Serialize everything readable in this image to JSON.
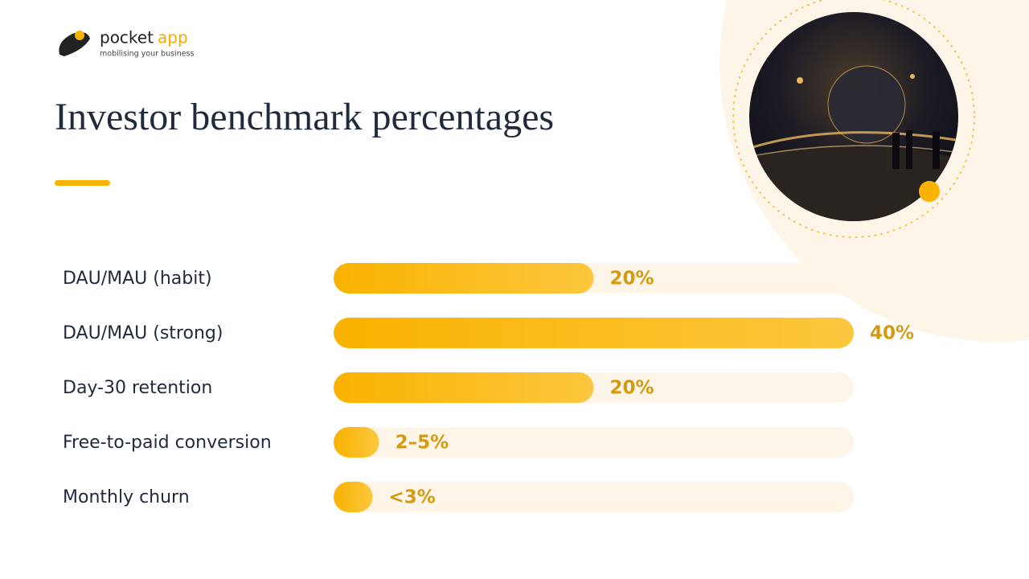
{
  "logo": {
    "word": "pocket",
    "accent": "app",
    "tagline": "mobilising your business"
  },
  "chart_data": {
    "type": "bar",
    "orientation": "horizontal",
    "title": "Investor benchmark percentages",
    "categories": [
      "DAU/MAU (habit)",
      "DAU/MAU (strong)",
      "Day-30 retention",
      "Free-to-paid conversion",
      "Monthly churn"
    ],
    "values": [
      20,
      40,
      20,
      3.5,
      3
    ],
    "value_labels": [
      "20%",
      "40%",
      "20%",
      "2–5%",
      "<3%"
    ],
    "xlim": [
      0,
      40
    ],
    "color": "#f9b200",
    "label_color": "#d49a12",
    "track_color": "#fdf5e7"
  }
}
